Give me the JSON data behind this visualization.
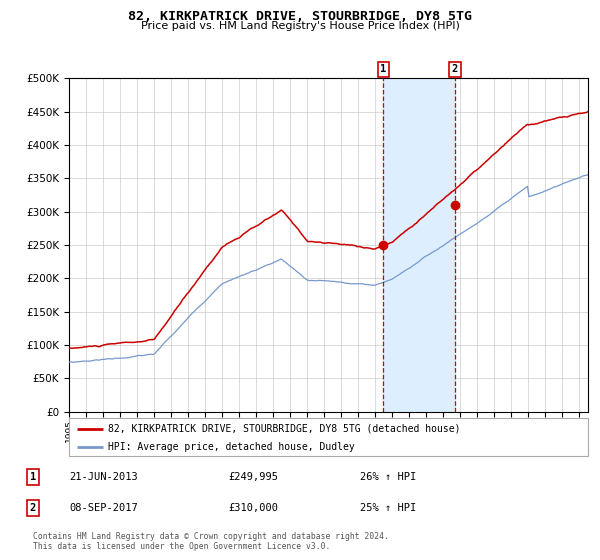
{
  "title": "82, KIRKPATRICK DRIVE, STOURBRIDGE, DY8 5TG",
  "subtitle": "Price paid vs. HM Land Registry's House Price Index (HPI)",
  "legend_line1": "82, KIRKPATRICK DRIVE, STOURBRIDGE, DY8 5TG (detached house)",
  "legend_line2": "HPI: Average price, detached house, Dudley",
  "transaction1_date": "21-JUN-2013",
  "transaction1_price": 249995,
  "transaction1_label": "26% ↑ HPI",
  "transaction2_date": "08-SEP-2017",
  "transaction2_price": 310000,
  "transaction2_label": "25% ↑ HPI",
  "footnote1": "Contains HM Land Registry data © Crown copyright and database right 2024.",
  "footnote2": "This data is licensed under the Open Government Licence v3.0.",
  "ylim": [
    0,
    500000
  ],
  "yticks": [
    0,
    50000,
    100000,
    150000,
    200000,
    250000,
    300000,
    350000,
    400000,
    450000,
    500000
  ],
  "red_color": "#cc0000",
  "blue_color": "#7799cc",
  "shade_color": "#ddeeff",
  "transaction1_x": 2013.47,
  "transaction2_x": 2017.68,
  "xlim_left": 1995.0,
  "xlim_right": 2025.5
}
